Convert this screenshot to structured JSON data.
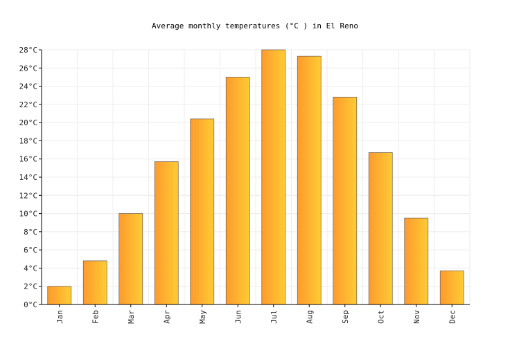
{
  "chart_data": {
    "type": "bar",
    "title": "Average monthly temperatures (°C ) in El Reno",
    "categories": [
      "Jan",
      "Feb",
      "Mar",
      "Apr",
      "May",
      "Jun",
      "Jul",
      "Aug",
      "Sep",
      "Oct",
      "Nov",
      "Dec"
    ],
    "values": [
      2.0,
      4.8,
      10.0,
      15.7,
      20.4,
      25.0,
      28.0,
      27.3,
      22.8,
      16.7,
      9.5,
      3.7
    ],
    "ylim": [
      0,
      28
    ],
    "ytick_step": 2,
    "ytick_suffix": "°C",
    "grid": true,
    "legend": "none",
    "bar_color_left": "#ff9a2e",
    "bar_color_right": "#ffcc33"
  }
}
